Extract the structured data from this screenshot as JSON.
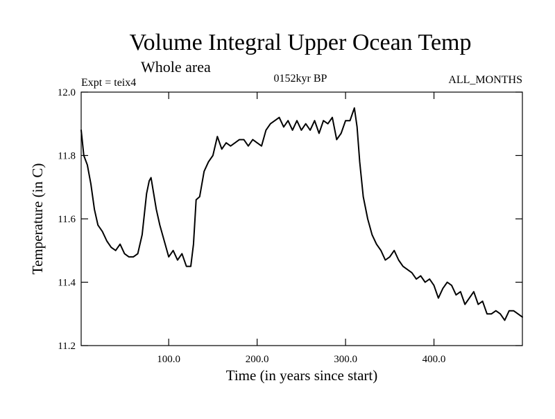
{
  "chart_data": {
    "type": "line",
    "title": "Volume Integral Upper Ocean Temp",
    "subtitle": "Whole area",
    "annotations": {
      "left": "Expt = teix4",
      "center": "0152kyr BP",
      "right": "ALL_MONTHS"
    },
    "xlabel": "Time (in years since start)",
    "ylabel": "Temperature (in C)",
    "xlim": [
      1,
      500
    ],
    "ylim": [
      11.2,
      12.0
    ],
    "x_ticks": [
      100,
      200,
      300,
      400
    ],
    "x_tick_labels": [
      "100.0",
      "200.0",
      "300.0",
      "400.0"
    ],
    "y_ticks": [
      11.2,
      11.4,
      11.6,
      11.8,
      12.0
    ],
    "y_tick_labels": [
      "11.2",
      "11.4",
      "11.6",
      "11.8",
      "12.0"
    ],
    "grid": false,
    "series": [
      {
        "name": "Volume Integral Upper Ocean Temp",
        "color": "#000000",
        "x": [
          1,
          4,
          8,
          12,
          16,
          20,
          25,
          30,
          35,
          40,
          45,
          50,
          55,
          60,
          65,
          70,
          75,
          78,
          80,
          83,
          86,
          90,
          95,
          100,
          105,
          110,
          115,
          120,
          125,
          128,
          131,
          135,
          140,
          145,
          150,
          155,
          160,
          165,
          170,
          175,
          180,
          185,
          190,
          195,
          200,
          205,
          210,
          215,
          220,
          225,
          230,
          235,
          240,
          245,
          250,
          255,
          260,
          265,
          270,
          275,
          280,
          285,
          290,
          295,
          300,
          305,
          310,
          313,
          316,
          320,
          325,
          330,
          335,
          340,
          345,
          350,
          355,
          360,
          365,
          370,
          375,
          380,
          385,
          390,
          395,
          400,
          405,
          410,
          415,
          420,
          425,
          430,
          435,
          440,
          445,
          450,
          455,
          460,
          465,
          470,
          475,
          480,
          485,
          490,
          495,
          500
        ],
        "values": [
          11.88,
          11.8,
          11.77,
          11.71,
          11.63,
          11.58,
          11.56,
          11.53,
          11.51,
          11.5,
          11.52,
          11.49,
          11.48,
          11.48,
          11.49,
          11.55,
          11.68,
          11.72,
          11.73,
          11.68,
          11.63,
          11.58,
          11.53,
          11.48,
          11.5,
          11.47,
          11.49,
          11.45,
          11.45,
          11.52,
          11.66,
          11.67,
          11.75,
          11.78,
          11.8,
          11.86,
          11.82,
          11.84,
          11.83,
          11.84,
          11.85,
          11.85,
          11.83,
          11.85,
          11.84,
          11.83,
          11.88,
          11.9,
          11.91,
          11.92,
          11.89,
          11.91,
          11.88,
          11.91,
          11.88,
          11.9,
          11.88,
          11.91,
          11.87,
          11.91,
          11.9,
          11.92,
          11.85,
          11.87,
          11.91,
          11.91,
          11.95,
          11.89,
          11.78,
          11.67,
          11.6,
          11.55,
          11.52,
          11.5,
          11.47,
          11.48,
          11.5,
          11.47,
          11.45,
          11.44,
          11.43,
          11.41,
          11.42,
          11.4,
          11.41,
          11.39,
          11.35,
          11.38,
          11.4,
          11.39,
          11.36,
          11.37,
          11.33,
          11.35,
          11.37,
          11.33,
          11.34,
          11.3,
          11.3,
          11.31,
          11.3,
          11.28,
          11.31,
          11.31,
          11.3,
          11.29
        ]
      }
    ]
  }
}
